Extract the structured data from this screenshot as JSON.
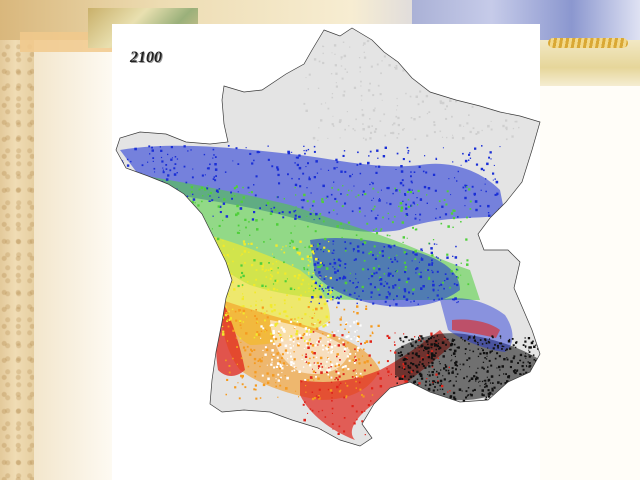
{
  "slide": {
    "year_label": "2100"
  },
  "map": {
    "subject": "France",
    "legend_colors": {
      "not_suitable": "#e2e2e2",
      "blue": "#1a2fd6",
      "green": "#4fcf3a",
      "yellow": "#f2ea2c",
      "orange": "#f59a1f",
      "red": "#e0241a",
      "black": "#111111"
    }
  }
}
